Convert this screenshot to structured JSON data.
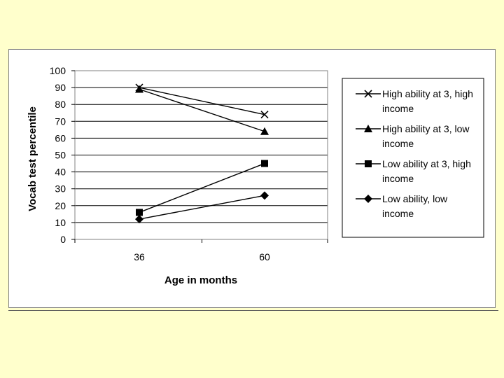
{
  "chart_data": {
    "type": "line",
    "x": [
      36,
      60
    ],
    "categories": [
      "36",
      "60"
    ],
    "xlabel": "Age in months",
    "ylabel": "Vocab test percentile",
    "ylim": [
      0,
      100
    ],
    "yticks": [
      "0",
      "10",
      "20",
      "30",
      "40",
      "50",
      "60",
      "70",
      "80",
      "90",
      "100"
    ],
    "grid": "horizontal",
    "legend_position": "right",
    "series": [
      {
        "name_lines": [
          "High ability at 3, high",
          "income"
        ],
        "marker": "x",
        "values": [
          90,
          74
        ]
      },
      {
        "name_lines": [
          "High ability at 3, low",
          "income"
        ],
        "marker": "triangle",
        "values": [
          89,
          64
        ]
      },
      {
        "name_lines": [
          "Low  ability at 3, high",
          "income"
        ],
        "marker": "square",
        "values": [
          16,
          45
        ]
      },
      {
        "name_lines": [
          "Low  ability,  low",
          "income"
        ],
        "marker": "diamond",
        "values": [
          12,
          26
        ]
      }
    ]
  }
}
